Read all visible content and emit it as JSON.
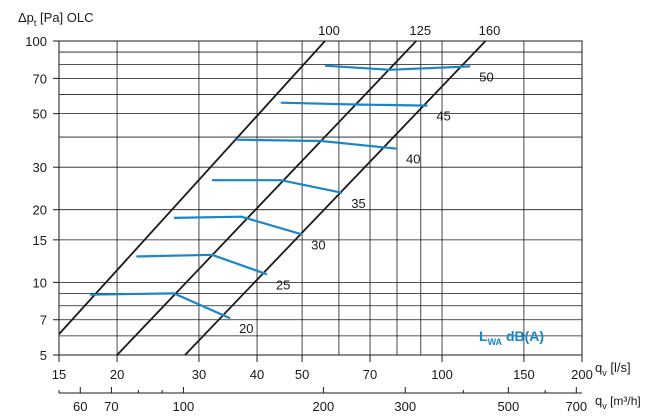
{
  "chart_data": {
    "type": "line",
    "title": "",
    "y_axis": {
      "label_main": "Δp",
      "label_sub": "t",
      "label_rest": " [Pa]  OLC",
      "scale": "log",
      "range": [
        5,
        100
      ],
      "ticks": [
        5,
        7,
        10,
        15,
        20,
        30,
        50,
        70,
        100
      ],
      "grid": [
        5,
        6,
        7,
        8,
        9,
        10,
        15,
        20,
        30,
        40,
        50,
        60,
        70,
        80,
        90,
        100
      ]
    },
    "x_axis": {
      "label_main": "q",
      "label_sub": "v",
      "label_rest": " [l/s]",
      "scale": "log",
      "range": [
        15,
        200
      ],
      "ticks": [
        15,
        20,
        30,
        40,
        50,
        70,
        100,
        150,
        200
      ],
      "grid": [
        20,
        30,
        40,
        50,
        60,
        70,
        80,
        90,
        100,
        150
      ]
    },
    "x2_axis": {
      "label_main": "q",
      "label_sub": "v",
      "label_rest": " [m³/h]",
      "scale": "log",
      "ticks": [
        60,
        70,
        100,
        200,
        300,
        500,
        700
      ],
      "minor": [
        54,
        80,
        90,
        400,
        600
      ]
    },
    "duct_lines": [
      {
        "label": "100",
        "points": [
          [
            15,
            6.1
          ],
          [
            56,
            100
          ]
        ]
      },
      {
        "label": "125",
        "points": [
          [
            20,
            5
          ],
          [
            88,
            100
          ]
        ]
      },
      {
        "label": "160",
        "points": [
          [
            28,
            5
          ],
          [
            124,
            100
          ]
        ]
      }
    ],
    "sound_lines": [
      {
        "label": "20",
        "points": [
          [
            17.5,
            8.9
          ],
          [
            26.5,
            9.0
          ],
          [
            35,
            7.1
          ]
        ]
      },
      {
        "label": "25",
        "points": [
          [
            22,
            12.8
          ],
          [
            32,
            13.0
          ],
          [
            42,
            10.8
          ]
        ]
      },
      {
        "label": "30",
        "points": [
          [
            26.5,
            18.5
          ],
          [
            37,
            18.7
          ],
          [
            50,
            15.8
          ]
        ]
      },
      {
        "label": "35",
        "points": [
          [
            32,
            26.5
          ],
          [
            45,
            26.5
          ],
          [
            61,
            23.5
          ]
        ]
      },
      {
        "label": "40",
        "points": [
          [
            36,
            39.0
          ],
          [
            55,
            38.5
          ],
          [
            80,
            35.8
          ]
        ]
      },
      {
        "label": "45",
        "points": [
          [
            45,
            55.5
          ],
          [
            67,
            54.5
          ],
          [
            93,
            54.0
          ]
        ]
      },
      {
        "label": "50",
        "points": [
          [
            56,
            79
          ],
          [
            77,
            76
          ],
          [
            115,
            78.5
          ]
        ]
      }
    ],
    "legend": {
      "main": "L",
      "sub": "WA",
      "rest": " dB(A)"
    },
    "colors": {
      "sound_line": "#1a86c8",
      "duct_line": "#1a1a1a",
      "grid": "#1a1a1a"
    }
  }
}
